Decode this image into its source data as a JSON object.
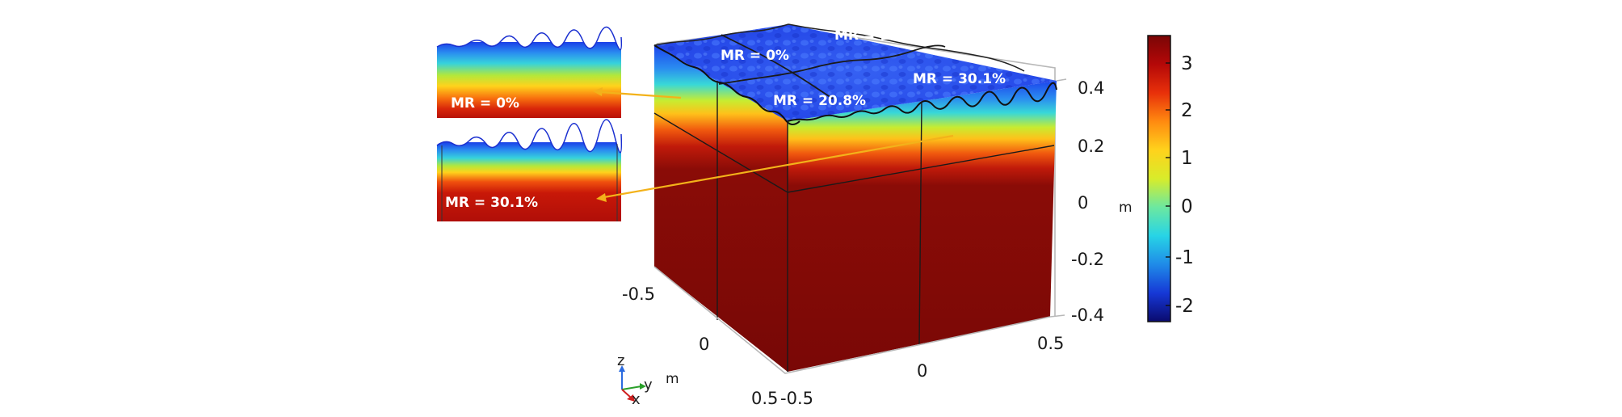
{
  "colorbar": {
    "unit": "m",
    "ticks": [
      "3",
      "2",
      "1",
      "0",
      "-1",
      "-2"
    ],
    "colors": [
      "#0a0a6e",
      "#1638d6",
      "#1f8be8",
      "#27d4e6",
      "#6ce8a0",
      "#d8ec2a",
      "#ffd21c",
      "#ff8a10",
      "#e8300a",
      "#b40808",
      "#7a0505"
    ]
  },
  "axes": {
    "z_unit": "m",
    "z_ticks": [
      "0.4",
      "0.2",
      "0",
      "-0.2",
      "-0.4"
    ],
    "x_ticks": [
      "-0.5",
      "0",
      "0.5"
    ],
    "x_unit": "m",
    "y_ticks": [
      "-0.5",
      "0",
      "0.5"
    ]
  },
  "top_labels": {
    "q1": "MR = 0%",
    "q2": "MR = 12.6%",
    "q3": "MR = 20.8%",
    "q4": "MR = 30.1%"
  },
  "insets": {
    "upper": "MR = 0%",
    "lower": "MR = 30.1%"
  },
  "triad": {
    "z": "z",
    "y": "y",
    "x": "x"
  },
  "colors": {
    "deep_red": "#7d0a07",
    "arrow": "#f3b21a",
    "surface_blue": "#2a56f0"
  }
}
